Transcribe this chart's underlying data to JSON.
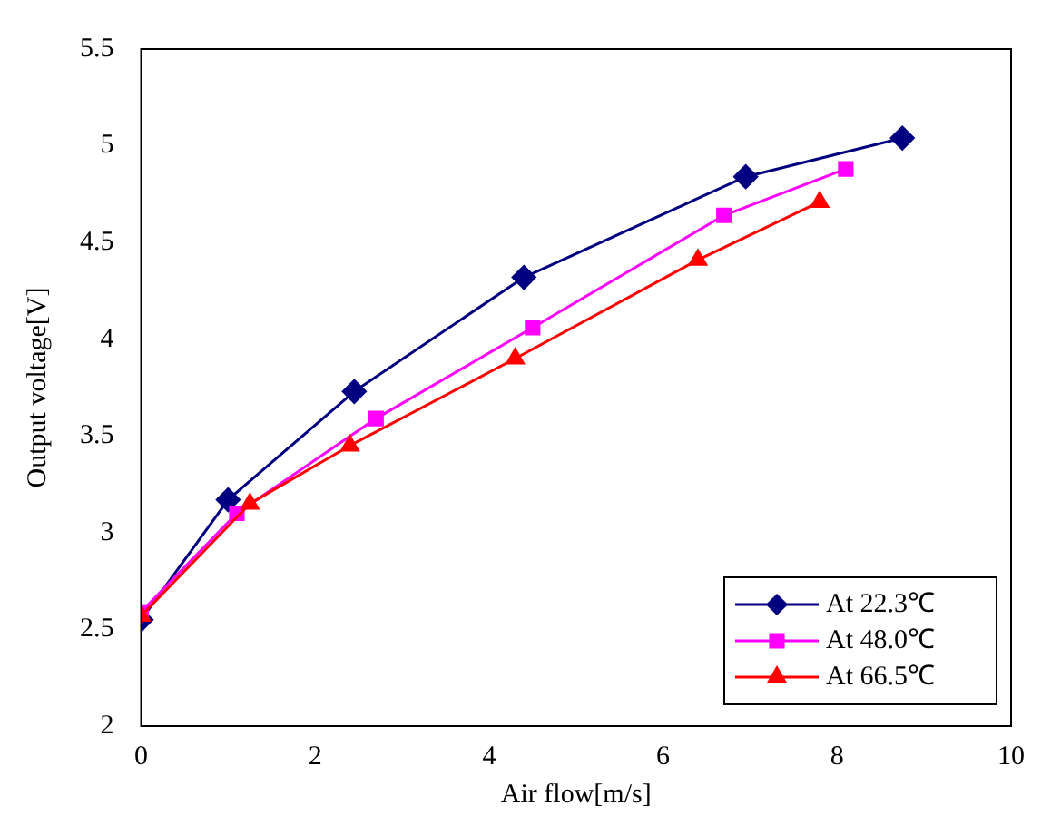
{
  "chart_data": {
    "type": "line",
    "xlabel": "Air flow[m/s]",
    "ylabel": "Output voltage[V]",
    "xlim": [
      0,
      10
    ],
    "xticks": [
      0,
      2,
      4,
      6,
      8,
      10
    ],
    "ylim": [
      2,
      5.5
    ],
    "yticks": [
      2,
      2.5,
      3,
      3.5,
      4,
      4.5,
      5,
      5.5
    ],
    "grid": false,
    "legend": "bottom right",
    "series": [
      {
        "name": "At 22.3℃",
        "color": "#000080",
        "marker": "diamond",
        "x": [
          0,
          1.0,
          2.45,
          4.4,
          6.95,
          8.75
        ],
        "values": [
          2.55,
          3.17,
          3.73,
          4.32,
          4.84,
          5.04
        ]
      },
      {
        "name": "At 48.0℃",
        "color": "#ff00ff",
        "marker": "square",
        "x": [
          0,
          1.1,
          2.7,
          4.5,
          6.7,
          8.1
        ],
        "values": [
          2.59,
          3.1,
          3.59,
          4.06,
          4.64,
          4.88
        ]
      },
      {
        "name": "At 66.5℃",
        "color": "#ff0000",
        "marker": "triangle",
        "x": [
          0,
          1.25,
          2.4,
          4.3,
          6.4,
          7.8
        ],
        "values": [
          2.57,
          3.15,
          3.45,
          3.9,
          4.41,
          4.71
        ]
      }
    ]
  }
}
